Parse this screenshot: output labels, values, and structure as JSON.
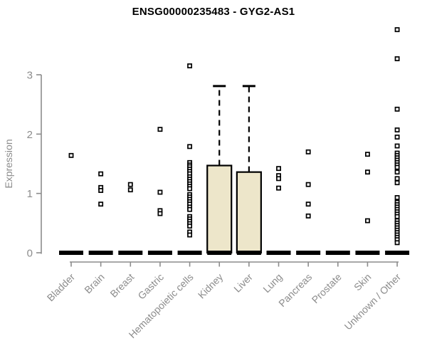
{
  "chart_data": {
    "type": "boxplot",
    "title": "ENSG00000235483 - GYG2-AS1",
    "ylabel": "Expression",
    "yticks": [
      0,
      1,
      2,
      3
    ],
    "ylim": [
      0,
      3.9
    ],
    "grid": false,
    "colors": {
      "box_fill": "#EDE6CA",
      "box_stroke": "#000000",
      "median": "#000000",
      "whisker": "#000000",
      "outlier": "#000000",
      "axis": "#8C8C8C",
      "tick_label": "#8C8C8C",
      "title": "#000000"
    },
    "categories": [
      {
        "label": "Bladder",
        "q1": 0,
        "median": 0,
        "q3": 0,
        "whisker_low": 0,
        "whisker_high": 0,
        "outliers": [
          1.64
        ]
      },
      {
        "label": "Brain",
        "q1": 0,
        "median": 0,
        "q3": 0,
        "whisker_low": 0,
        "whisker_high": 0,
        "outliers": [
          1.33,
          1.1,
          1.05,
          0.82
        ]
      },
      {
        "label": "Breast",
        "q1": 0,
        "median": 0,
        "q3": 0,
        "whisker_low": 0,
        "whisker_high": 0,
        "outliers": [
          1.15,
          1.06
        ]
      },
      {
        "label": "Gastric",
        "q1": 0,
        "median": 0,
        "q3": 0,
        "whisker_low": 0,
        "whisker_high": 0,
        "outliers": [
          2.08,
          1.02,
          0.71,
          0.66
        ]
      },
      {
        "label": "Hematopoietic cells",
        "q1": 0,
        "median": 0,
        "q3": 0,
        "whisker_low": 0,
        "whisker_high": 0,
        "outliers": [
          3.15,
          1.79,
          1.52,
          1.48,
          1.45,
          1.41,
          1.37,
          1.33,
          1.28,
          1.24,
          1.2,
          1.16,
          1.12,
          1.08,
          0.98,
          0.94,
          0.9,
          0.86,
          0.82,
          0.77,
          0.73,
          0.61,
          0.57,
          0.53,
          0.49,
          0.45,
          0.35,
          0.3
        ]
      },
      {
        "label": "Kidney",
        "q1": 0,
        "median": 0,
        "q3": 1.47,
        "whisker_low": 0,
        "whisker_high": 2.81,
        "outliers": []
      },
      {
        "label": "Liver",
        "q1": 0,
        "median": 0,
        "q3": 1.36,
        "whisker_low": 0,
        "whisker_high": 2.81,
        "outliers": []
      },
      {
        "label": "Lung",
        "q1": 0,
        "median": 0,
        "q3": 0,
        "whisker_low": 0,
        "whisker_high": 0,
        "outliers": [
          1.42,
          1.3,
          1.25,
          1.09
        ]
      },
      {
        "label": "Pancreas",
        "q1": 0,
        "median": 0,
        "q3": 0,
        "whisker_low": 0,
        "whisker_high": 0,
        "outliers": [
          1.7,
          1.15,
          0.82,
          0.62
        ]
      },
      {
        "label": "Prostate",
        "q1": 0,
        "median": 0,
        "q3": 0,
        "whisker_low": 0,
        "whisker_high": 0,
        "outliers": []
      },
      {
        "label": "Skin",
        "q1": 0,
        "median": 0,
        "q3": 0,
        "whisker_low": 0,
        "whisker_high": 0,
        "outliers": [
          1.66,
          1.36,
          0.54
        ]
      },
      {
        "label": "Unknown / Other",
        "q1": 0,
        "median": 0,
        "q3": 0,
        "whisker_low": 0,
        "whisker_high": 0,
        "outliers": [
          3.76,
          3.27,
          2.42,
          2.07,
          1.95,
          1.8,
          1.68,
          1.64,
          1.6,
          1.56,
          1.52,
          1.48,
          1.44,
          1.36,
          1.25,
          1.18,
          0.93,
          0.85,
          0.81,
          0.77,
          0.73,
          0.69,
          0.65,
          0.61,
          0.54,
          0.5,
          0.46,
          0.42,
          0.38,
          0.34,
          0.3,
          0.26,
          0.22,
          0.17
        ]
      }
    ]
  }
}
